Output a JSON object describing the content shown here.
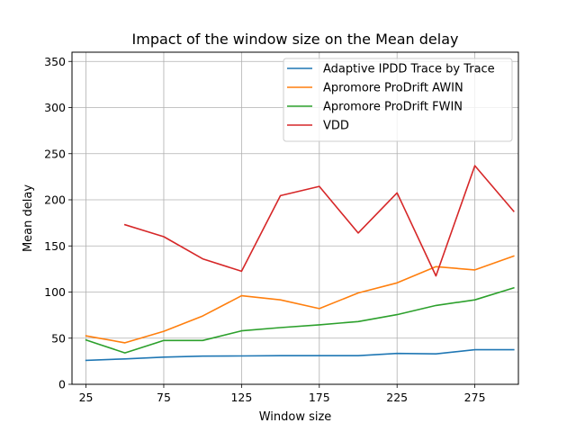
{
  "chart_data": {
    "type": "line",
    "title": "Impact of the window size on the Mean delay",
    "xlabel": "Window size",
    "ylabel": "Mean delay",
    "xlim": [
      16,
      303
    ],
    "ylim": [
      0,
      360
    ],
    "xticks": [
      25,
      75,
      125,
      175,
      225,
      275
    ],
    "yticks": [
      0,
      50,
      100,
      150,
      200,
      250,
      300,
      350
    ],
    "grid": true,
    "legend_position": "upper-right",
    "series": [
      {
        "name": "Adaptive IPDD Trace by Trace",
        "color": "#1f77b4",
        "x": [
          25,
          50,
          75,
          100,
          125,
          150,
          175,
          200,
          225,
          250,
          275,
          300
        ],
        "values": [
          26,
          27.5,
          29.5,
          30.5,
          30.7,
          31,
          31,
          31,
          33.5,
          33,
          37.5,
          37.5
        ]
      },
      {
        "name": "Apromore ProDrift AWIN",
        "color": "#ff7f0e",
        "x": [
          25,
          50,
          75,
          100,
          125,
          150,
          175,
          200,
          225,
          250,
          275,
          300
        ],
        "values": [
          52.5,
          45,
          57.5,
          74,
          96,
          91.5,
          82,
          99,
          110,
          127.5,
          124,
          139
        ]
      },
      {
        "name": "Apromore ProDrift FWIN",
        "color": "#2ca02c",
        "x": [
          25,
          50,
          75,
          100,
          125,
          150,
          175,
          200,
          225,
          250,
          275,
          300
        ],
        "values": [
          48,
          34,
          47.5,
          47.5,
          58,
          61.5,
          64.5,
          68,
          75.5,
          85.5,
          91.5,
          104.5
        ]
      },
      {
        "name": "VDD",
        "color": "#d62728",
        "x": [
          50,
          75,
          100,
          125,
          150,
          175,
          200,
          225,
          250,
          275,
          300
        ],
        "values": [
          173,
          160,
          136,
          122.5,
          204.5,
          214.5,
          164,
          207.5,
          117.5,
          237,
          187.5
        ]
      }
    ]
  }
}
